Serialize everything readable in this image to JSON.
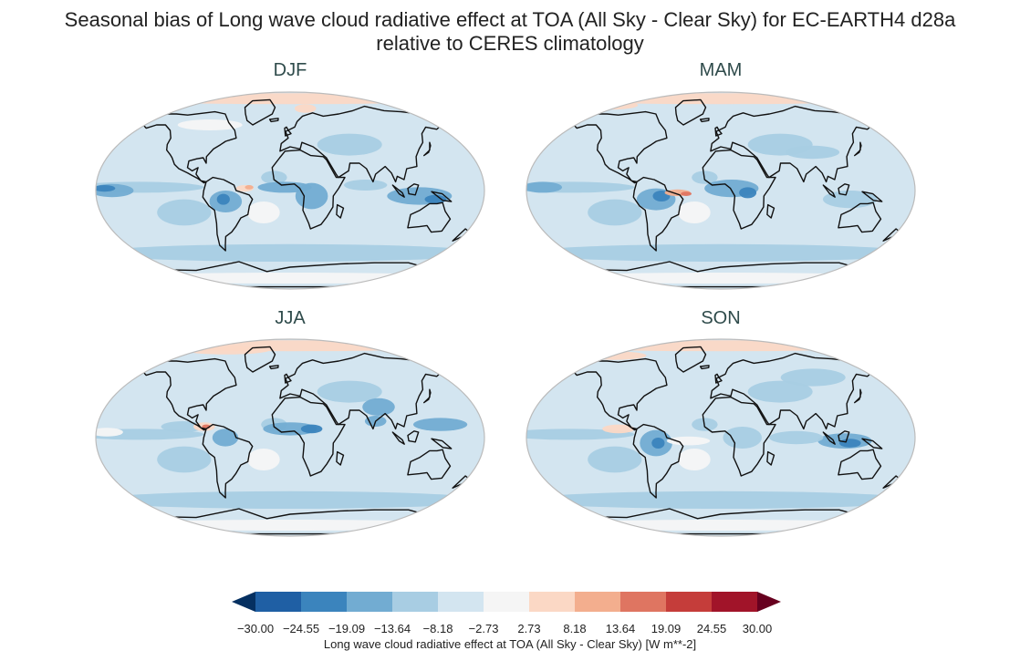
{
  "title": {
    "line1": "Seasonal bias of Long wave cloud radiative effect at TOA (All Sky - Clear Sky) for EC-EARTH4 d28a",
    "line2": "relative to CERES climatology"
  },
  "panels": [
    {
      "label": "DJF"
    },
    {
      "label": "MAM"
    },
    {
      "label": "JJA"
    },
    {
      "label": "SON"
    }
  ],
  "colorbar": {
    "label": "Long wave cloud radiative effect at TOA (All Sky - Clear Sky) [W m**-2]",
    "ticks": [
      "−30.00",
      "−24.55",
      "−19.09",
      "−13.64",
      "−8.18",
      "−2.73",
      "2.73",
      "8.18",
      "13.64",
      "19.09",
      "24.55",
      "30.00"
    ],
    "colors": [
      "#053061",
      "#1f5fa4",
      "#3b84bd",
      "#72acd2",
      "#a8cde3",
      "#d3e5f0",
      "#f5f5f5",
      "#fbd8c5",
      "#f3ae8e",
      "#df7561",
      "#c53d3a",
      "#a11429",
      "#67001f"
    ]
  },
  "map_colors": {
    "ocean_base": "#d3e5f0",
    "negative_light": "#a8cde3",
    "negative_mid": "#72acd2",
    "negative_strong": "#3b84bd",
    "negative_max": "#1f5fa4",
    "neutral": "#f5f5f5",
    "positive_light": "#fbd8c5",
    "positive_mid": "#f3ae8e",
    "positive_strong": "#df7561",
    "coastline": "#111111",
    "frame": "#bbbbbb"
  }
}
